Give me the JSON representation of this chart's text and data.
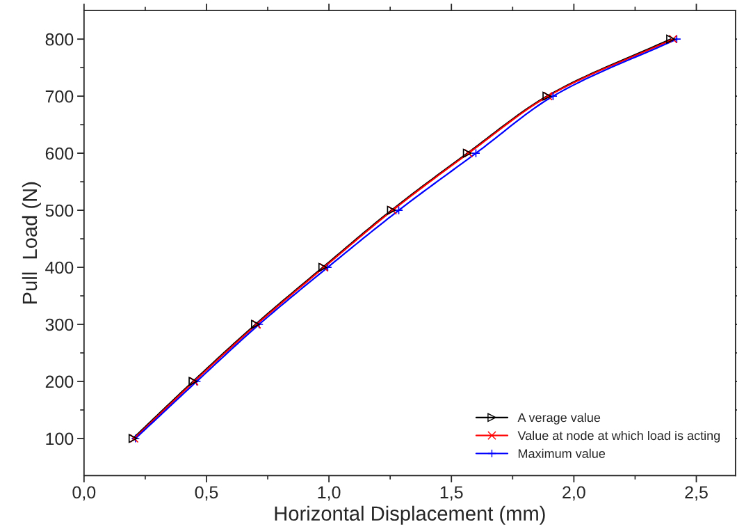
{
  "chart_data": {
    "type": "line",
    "xlabel": "Horizontal Displacement (mm)",
    "ylabel": "Pull  Load (N)",
    "series": [
      {
        "name": "A verage value",
        "color": "#000000",
        "marker": "triangle",
        "x": [
          0.2,
          0.445,
          0.7,
          0.975,
          1.255,
          1.565,
          1.89,
          2.395
        ],
        "values": [
          100,
          200,
          300,
          400,
          500,
          600,
          700,
          800
        ]
      },
      {
        "name": "Value at node at which load is acting",
        "color": "#ff0000",
        "marker": "cross",
        "x": [
          0.205,
          0.45,
          0.705,
          0.98,
          1.26,
          1.57,
          1.895,
          2.405
        ],
        "values": [
          100,
          200,
          300,
          400,
          500,
          600,
          700,
          800
        ]
      },
      {
        "name": "Maximum value",
        "color": "#0000ff",
        "marker": "plus",
        "x": [
          0.21,
          0.46,
          0.715,
          0.995,
          1.285,
          1.6,
          1.915,
          2.42
        ],
        "values": [
          100,
          200,
          300,
          400,
          500,
          600,
          700,
          800
        ]
      }
    ],
    "xlim": [
      0,
      2.66
    ],
    "xticks": [
      {
        "value": 0,
        "label": "0,0"
      },
      {
        "value": 0.5,
        "label": "0,5"
      },
      {
        "value": 1.0,
        "label": "1,0"
      },
      {
        "value": 1.5,
        "label": "1,5"
      },
      {
        "value": 2.0,
        "label": "2,0"
      },
      {
        "value": 2.5,
        "label": "2,5"
      }
    ],
    "ylim": [
      35,
      850
    ],
    "yticks": [
      100,
      200,
      300,
      400,
      500,
      600,
      700,
      800
    ],
    "grid": false,
    "legend": "bottom right",
    "line_style": "solid"
  }
}
